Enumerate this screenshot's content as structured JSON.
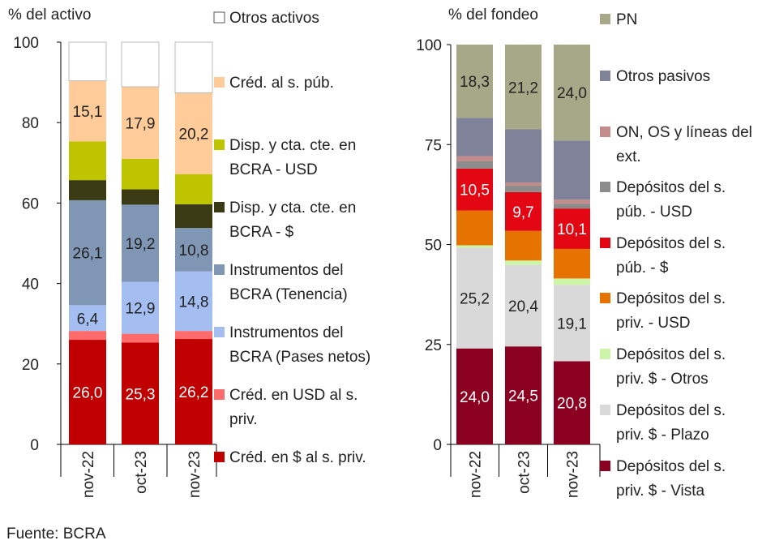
{
  "source": "Fuente: BCRA",
  "chart_data": [
    {
      "type": "bar",
      "stacked": true,
      "title": "",
      "ylabel": "% del activo",
      "ylim": [
        0,
        100
      ],
      "yticks": [
        "0",
        "20",
        "40",
        "60",
        "80",
        "100"
      ],
      "categories": [
        "nov-22",
        "oct-23",
        "nov-23"
      ],
      "series": [
        {
          "name": "Créd. en $ al s. priv.",
          "color": "#C00000",
          "values": [
            26.0,
            25.3,
            26.2
          ],
          "labels": [
            "26,0",
            "25,3",
            "26,2"
          ],
          "label_color": "#ffffff"
        },
        {
          "name": "Créd. en USD al s. priv.",
          "color": "#FF6B6B",
          "values": [
            2.2,
            2.2,
            2.0
          ],
          "labels": null
        },
        {
          "name": "Instrumentos del BCRA (Pases netos)",
          "color": "#A4BEF2",
          "values": [
            6.4,
            12.9,
            14.8
          ],
          "labels": [
            "6,4",
            "12,9",
            "14,8"
          ],
          "label_color": "#222222"
        },
        {
          "name": "Instrumentos del BCRA (Tenencia)",
          "color": "#8096B5",
          "values": [
            26.1,
            19.2,
            10.8
          ],
          "labels": [
            "26,1",
            "19,2",
            "10,8"
          ],
          "label_color": "#222222"
        },
        {
          "name": "Disp. y cta. cte. en BCRA - $",
          "color": "#3A3A14",
          "values": [
            5.0,
            3.8,
            5.9
          ],
          "labels": null
        },
        {
          "name": "Disp. y cta. cte. en BCRA - USD",
          "color": "#BFC400",
          "values": [
            9.6,
            7.6,
            7.5
          ],
          "labels": null
        },
        {
          "name": "Créd. al s. púb.",
          "color": "#FFCC99",
          "values": [
            15.1,
            17.9,
            20.2
          ],
          "labels": [
            "15,1",
            "17,9",
            "20,2"
          ],
          "label_color": "#222222"
        },
        {
          "name": "Otros activos",
          "color": "#FFFFFF",
          "values": [
            9.6,
            11.1,
            12.6
          ],
          "labels": null
        }
      ]
    },
    {
      "type": "bar",
      "stacked": true,
      "title": "",
      "ylabel": "% del fondeo",
      "ylim": [
        0,
        100
      ],
      "yticks": [
        "0",
        "25",
        "50",
        "75",
        "100"
      ],
      "categories": [
        "nov-22",
        "oct-23",
        "nov-23"
      ],
      "series": [
        {
          "name": "Depósitos del s. priv. $ - Vista",
          "color": "#8B0020",
          "values": [
            24.0,
            24.5,
            20.8
          ],
          "labels": [
            "24,0",
            "24,5",
            "20,8"
          ],
          "label_color": "#ffffff"
        },
        {
          "name": "Depósitos del s. priv. $ - Plazo",
          "color": "#D9D9D9",
          "values": [
            25.2,
            20.4,
            19.1
          ],
          "labels": [
            "25,2",
            "20,4",
            "19,1"
          ],
          "label_color": "#222222"
        },
        {
          "name": "Depósitos del s. priv. $ - Otros",
          "color": "#CCF5A8",
          "values": [
            0.6,
            1.1,
            1.6
          ],
          "labels": null
        },
        {
          "name": "Depósitos del s. priv. - USD",
          "color": "#E67300",
          "values": [
            8.7,
            7.4,
            7.4
          ],
          "labels": null
        },
        {
          "name": "Depósitos del s. púb. - $",
          "color": "#E30613",
          "values": [
            10.5,
            9.7,
            10.1
          ],
          "labels": [
            "10,5",
            "9,7",
            "10,1"
          ],
          "label_color": "#ffffff"
        },
        {
          "name": "Depósitos del s. púb. - USD",
          "color": "#8C8C8C",
          "values": [
            1.8,
            1.6,
            1.2
          ],
          "labels": null
        },
        {
          "name": "ON, OS y líneas del ext.",
          "color": "#C48B8B",
          "values": [
            1.3,
            0.8,
            1.0
          ],
          "labels": null
        },
        {
          "name": "Otros pasivos",
          "color": "#7F8299",
          "values": [
            9.6,
            13.3,
            14.8
          ],
          "labels": null
        },
        {
          "name": "PN",
          "color": "#A5A987",
          "values": [
            18.3,
            21.2,
            24.0
          ],
          "labels": [
            "18,3",
            "21,2",
            "24,0"
          ],
          "label_color": "#222222"
        }
      ]
    }
  ],
  "legends": [
    [
      {
        "lines": [
          "Otros activos"
        ],
        "color": "#FFFFFF",
        "outlined": true
      },
      {
        "lines": [
          "Créd. al s. púb."
        ],
        "color": "#FFCC99"
      },
      {
        "lines": [
          "Disp. y cta. cte. en",
          "BCRA - USD"
        ],
        "color": "#BFC400"
      },
      {
        "lines": [
          "Disp. y cta. cte. en",
          "BCRA - $"
        ],
        "color": "#3A3A14"
      },
      {
        "lines": [
          "Instrumentos del",
          "BCRA (Tenencia)"
        ],
        "color": "#8096B5"
      },
      {
        "lines": [
          "Instrumentos del",
          "BCRA (Pases netos)"
        ],
        "color": "#A4BEF2"
      },
      {
        "lines": [
          "Créd. en USD al s.",
          "priv."
        ],
        "color": "#FF6B6B"
      },
      {
        "lines": [
          "Créd. en $ al s. priv."
        ],
        "color": "#C00000"
      }
    ],
    [
      {
        "lines": [
          "PN"
        ],
        "color": "#A5A987"
      },
      {
        "lines": [
          "Otros pasivos"
        ],
        "color": "#7F8299"
      },
      {
        "lines": [
          "ON, OS y líneas del",
          "ext."
        ],
        "color": "#C48B8B"
      },
      {
        "lines": [
          "Depósitos del s.",
          "púb. - USD"
        ],
        "color": "#8C8C8C"
      },
      {
        "lines": [
          "Depósitos del s.",
          "púb. - $"
        ],
        "color": "#E30613"
      },
      {
        "lines": [
          "Depósitos del s.",
          "priv. - USD"
        ],
        "color": "#E67300"
      },
      {
        "lines": [
          "Depósitos del s.",
          "priv. $ - Otros"
        ],
        "color": "#CCF5A8"
      },
      {
        "lines": [
          "Depósitos del s.",
          "priv. $ - Plazo"
        ],
        "color": "#D9D9D9"
      },
      {
        "lines": [
          "Depósitos del s.",
          "priv. $ - Vista"
        ],
        "color": "#8B0020"
      }
    ]
  ]
}
